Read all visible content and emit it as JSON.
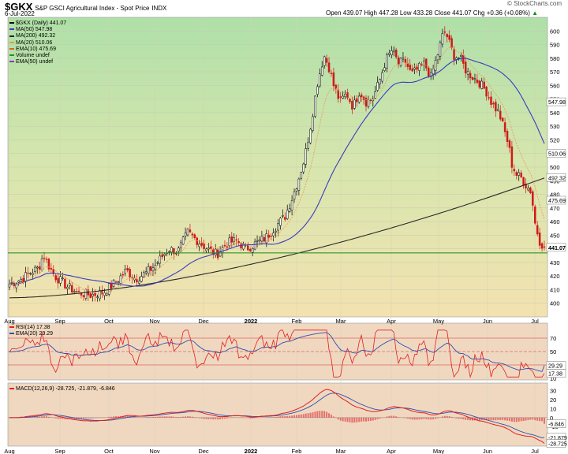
{
  "header": {
    "symbol": "$GKX",
    "name": "S&P GSCI Agricultural Index - Spot Price",
    "exchange": "INDX",
    "date": "6-Jul-2022",
    "ohlc": "Open 439.07  High 447.28  Low 433.28  Close 441.07  Chg +0.36 (+0.08%)",
    "up_arrow": "▲",
    "copyright": "© StockCharts.com"
  },
  "legend": [
    {
      "label": "$GKX (Daily) 441.07",
      "color": "#000000"
    },
    {
      "label": "MA(50) 547.98",
      "color": "#3b3bbf"
    },
    {
      "label": "MA(200) 492.32",
      "color": "#222222"
    },
    {
      "label": "MA(20) 510.06",
      "color": "#d9a13c"
    },
    {
      "label": "EMA(10) 475.69",
      "color": "#e06020"
    },
    {
      "label": "Volume undef",
      "color": "#2a8a2a"
    },
    {
      "label": "EMA(50) undef",
      "color": "#7a3fbf"
    }
  ],
  "rsi_legend": [
    {
      "label": "RSI(14) 17.38",
      "color": "#e02020"
    },
    {
      "label": "EMA(20) 29.29",
      "color": "#2c4fb0"
    }
  ],
  "macd_label": "MACD(12,26,9) -28.725, -21.879, -6.846",
  "colors": {
    "up": "#000000",
    "down": "#d01818",
    "ma50": "#3b3bbf",
    "ma200": "#2a2a2a",
    "ema10": "#e8a060",
    "support": "#1a8a1a",
    "rsi": "#e02020",
    "rsi_ema": "#2c4fb0",
    "macd": "#e02020",
    "signal": "#2c4fb0",
    "hist": "#e05050"
  },
  "chart_data": [
    {
      "type": "candlestick",
      "title": "$GKX S&P GSCI Agricultural Index - Spot Price",
      "ylim": [
        390,
        610
      ],
      "yticks": [
        400,
        410,
        420,
        430,
        440,
        450,
        460,
        470,
        480,
        490,
        500,
        510,
        520,
        530,
        540,
        550,
        560,
        570,
        580,
        590,
        600
      ],
      "x_labels": [
        "Aug",
        "Sep",
        "Oct",
        "Nov",
        "Dec",
        "2022",
        "Feb",
        "Mar",
        "Apr",
        "May",
        "Jun",
        "Jul"
      ],
      "price_path": [
        [
          0,
          414
        ],
        [
          8,
          418
        ],
        [
          12,
          422
        ],
        [
          18,
          426
        ],
        [
          21,
          436
        ],
        [
          24,
          428
        ],
        [
          28,
          420
        ],
        [
          36,
          412
        ],
        [
          42,
          408
        ],
        [
          50,
          406
        ],
        [
          58,
          408
        ],
        [
          66,
          416
        ],
        [
          72,
          424
        ],
        [
          78,
          418
        ],
        [
          84,
          422
        ],
        [
          90,
          428
        ],
        [
          98,
          440
        ],
        [
          104,
          438
        ],
        [
          110,
          452
        ],
        [
          116,
          446
        ],
        [
          122,
          440
        ],
        [
          128,
          436
        ],
        [
          134,
          444
        ],
        [
          140,
          446
        ],
        [
          146,
          440
        ],
        [
          152,
          444
        ],
        [
          158,
          448
        ],
        [
          164,
          456
        ],
        [
          170,
          464
        ],
        [
          174,
          476
        ],
        [
          178,
          490
        ],
        [
          182,
          506
        ],
        [
          186,
          532
        ],
        [
          190,
          562
        ],
        [
          194,
          582
        ],
        [
          197,
          574
        ],
        [
          200,
          560
        ],
        [
          204,
          548
        ],
        [
          208,
          554
        ],
        [
          212,
          544
        ],
        [
          216,
          556
        ],
        [
          220,
          548
        ],
        [
          224,
          550
        ],
        [
          228,
          562
        ],
        [
          232,
          578
        ],
        [
          236,
          586
        ],
        [
          240,
          576
        ],
        [
          244,
          578
        ],
        [
          248,
          568
        ],
        [
          252,
          572
        ],
        [
          256,
          576
        ],
        [
          260,
          566
        ],
        [
          264,
          582
        ],
        [
          268,
          600
        ],
        [
          270,
          596
        ],
        [
          274,
          582
        ],
        [
          278,
          580
        ],
        [
          282,
          570
        ],
        [
          286,
          566
        ],
        [
          290,
          562
        ],
        [
          294,
          556
        ],
        [
          298,
          546
        ],
        [
          302,
          540
        ],
        [
          305,
          528
        ],
        [
          308,
          516
        ],
        [
          310,
          502
        ],
        [
          313,
          494
        ],
        [
          316,
          492
        ],
        [
          319,
          486
        ],
        [
          322,
          482
        ],
        [
          324,
          460
        ],
        [
          327,
          446
        ],
        [
          330,
          441.07
        ]
      ],
      "annotations": {
        "support_level": 437,
        "price_tags": [
          {
            "label": "547.98",
            "value": 547.98
          },
          {
            "label": "510.06",
            "value": 510.06
          },
          {
            "label": "492.32",
            "value": 492.32
          },
          {
            "label": "475.69",
            "value": 475.69
          },
          {
            "label": "441.07",
            "value": 441.07
          }
        ]
      }
    },
    {
      "type": "line",
      "title": "RSI(14)",
      "ylim": [
        10,
        90
      ],
      "yticks": [
        10,
        30,
        50,
        70
      ],
      "reference_lines": [
        70,
        50,
        30
      ],
      "series": [
        {
          "name": "RSI(14)",
          "final": 17.38
        },
        {
          "name": "EMA(20)",
          "final": 29.29
        }
      ],
      "tags": [
        {
          "label": "29.29",
          "value": 29.29
        },
        {
          "label": "17.38",
          "value": 17.38
        }
      ]
    },
    {
      "type": "line",
      "title": "MACD(12,26,9)",
      "ylim": [
        -30,
        35
      ],
      "yticks": [
        -20,
        -10,
        0,
        10,
        20,
        30
      ],
      "series": [
        {
          "name": "MACD",
          "final": -28.725
        },
        {
          "name": "Signal",
          "final": -21.879
        },
        {
          "name": "Histogram",
          "final": -6.846
        }
      ],
      "tags": [
        {
          "label": "-6.846",
          "value": -6.846
        },
        {
          "label": "-21.879",
          "value": -21.879
        },
        {
          "label": "-28.725",
          "value": -28.725
        }
      ]
    }
  ]
}
